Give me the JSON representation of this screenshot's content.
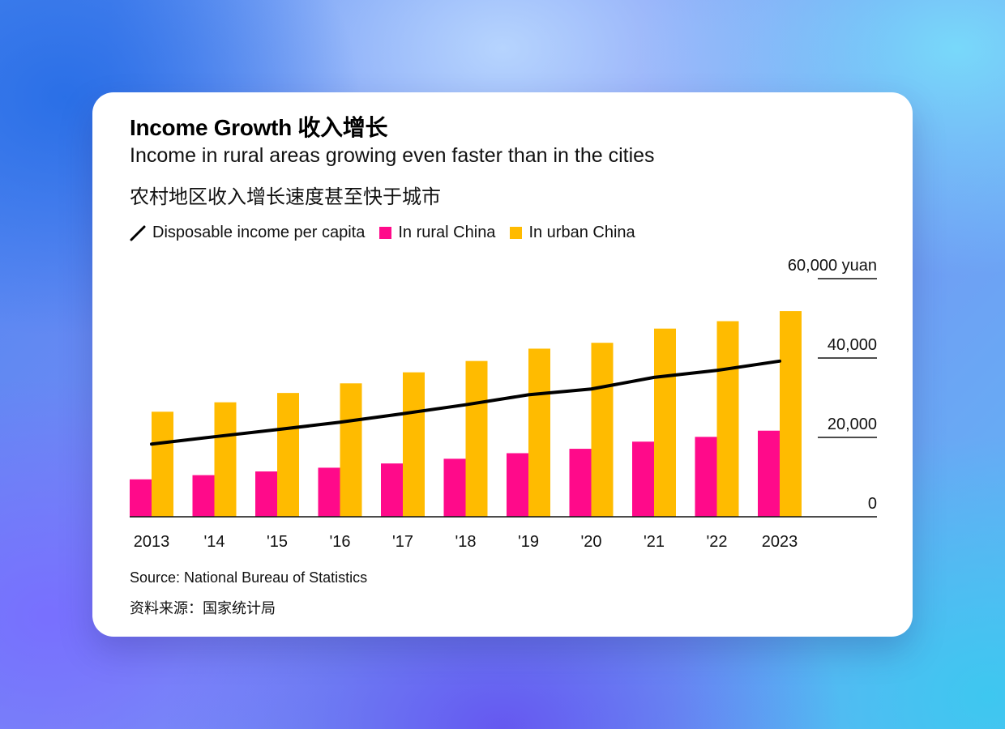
{
  "card": {
    "title": "Income Growth 收入增长",
    "subtitle_en": "Income in rural areas growing even faster than in the cities",
    "subtitle_zh": "农村地区收入增长速度甚至快于城市",
    "source_en": "Source: National Bureau of Statistics",
    "source_zh": "资料来源：国家统计局"
  },
  "colors": {
    "rural": "#ff0a8a",
    "urban": "#ffbb00",
    "line": "#000000",
    "axis": "#111111"
  },
  "chart_data": {
    "type": "bar",
    "title": "Income Growth 收入增长",
    "categories": [
      "2013",
      "'14",
      "'15",
      "'16",
      "'17",
      "'18",
      "'19",
      "'20",
      "'21",
      "'22",
      "2023"
    ],
    "series": [
      {
        "name": "In rural China",
        "kind": "bar",
        "values": [
          9430,
          10489,
          11422,
          12363,
          13432,
          14617,
          16021,
          17131,
          18931,
          20133,
          21691
        ]
      },
      {
        "name": "In urban China",
        "kind": "bar",
        "values": [
          26467,
          28844,
          31195,
          33616,
          36396,
          39251,
          42359,
          43834,
          47412,
          49283,
          51821
        ]
      },
      {
        "name": "Disposable income per capita",
        "kind": "line",
        "values": [
          18311,
          20167,
          21966,
          23821,
          25974,
          28228,
          30733,
          32189,
          35128,
          36883,
          39218
        ]
      }
    ],
    "legend": [
      "Disposable income per capita",
      "In rural China",
      "In urban China"
    ],
    "y_ticks": [
      "0",
      "20,000",
      "40,000",
      "60,000 yuan"
    ],
    "y_tick_values": [
      0,
      20000,
      40000,
      60000
    ],
    "ylim": [
      0,
      60000
    ],
    "xlabel": "",
    "ylabel": "yuan",
    "y_axis_side": "right"
  }
}
